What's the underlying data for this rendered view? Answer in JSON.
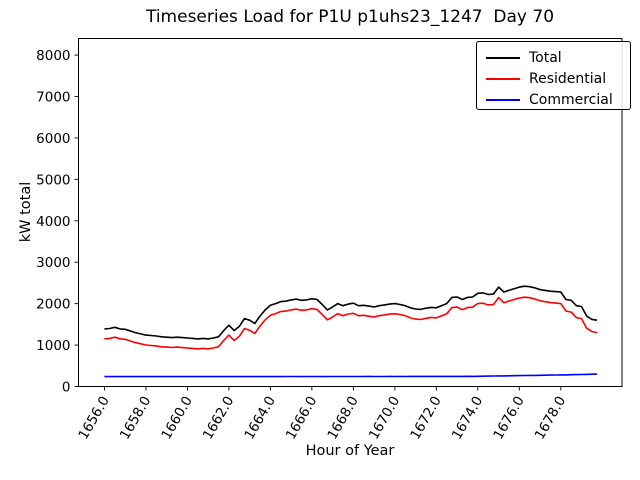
{
  "chart_data": {
    "type": "line",
    "title": "Timeseries Load for P1U p1uhs23_1247  Day 70",
    "xlabel": "Hour of Year",
    "ylabel": "kW total",
    "xlim": [
      1654.75,
      1680.95
    ],
    "ylim": [
      0,
      8400
    ],
    "grid": false,
    "legend_position": "upper right",
    "xtick_values": [
      1656,
      1658,
      1660,
      1662,
      1664,
      1666,
      1668,
      1670,
      1672,
      1674,
      1676,
      1678
    ],
    "xtick_labels": [
      "1656.0",
      "1658.0",
      "1660.0",
      "1662.0",
      "1664.0",
      "1666.0",
      "1668.0",
      "1670.0",
      "1672.0",
      "1674.0",
      "1676.0",
      "1678.0"
    ],
    "ytick_values": [
      0,
      1000,
      2000,
      3000,
      4000,
      5000,
      6000,
      7000,
      8000
    ],
    "ytick_labels": [
      "0",
      "1000",
      "2000",
      "3000",
      "4000",
      "5000",
      "6000",
      "7000",
      "8000"
    ],
    "x": [
      1656.0,
      1656.25,
      1656.5,
      1656.75,
      1657.0,
      1657.25,
      1657.5,
      1657.75,
      1658.0,
      1658.25,
      1658.5,
      1658.75,
      1659.0,
      1659.25,
      1659.5,
      1659.75,
      1660.0,
      1660.25,
      1660.5,
      1660.75,
      1661.0,
      1661.25,
      1661.5,
      1661.75,
      1662.0,
      1662.25,
      1662.5,
      1662.75,
      1663.0,
      1663.25,
      1663.5,
      1663.75,
      1664.0,
      1664.25,
      1664.5,
      1664.75,
      1665.0,
      1665.25,
      1665.5,
      1665.75,
      1666.0,
      1666.25,
      1666.5,
      1666.75,
      1667.0,
      1667.25,
      1667.5,
      1667.75,
      1668.0,
      1668.25,
      1668.5,
      1668.75,
      1669.0,
      1669.25,
      1669.5,
      1669.75,
      1670.0,
      1670.25,
      1670.5,
      1670.75,
      1671.0,
      1671.25,
      1671.5,
      1671.75,
      1672.0,
      1672.25,
      1672.5,
      1672.75,
      1673.0,
      1673.25,
      1673.5,
      1673.75,
      1674.0,
      1674.25,
      1674.5,
      1674.75,
      1675.0,
      1675.25,
      1675.5,
      1675.75,
      1676.0,
      1676.25,
      1676.5,
      1676.75,
      1677.0,
      1677.25,
      1677.5,
      1677.75,
      1678.0,
      1678.25,
      1678.5,
      1678.75,
      1679.0,
      1679.25,
      1679.5,
      1679.75
    ],
    "series": [
      {
        "name": "Total",
        "color": "#000000",
        "values": [
          1390,
          1400,
          1430,
          1390,
          1380,
          1340,
          1300,
          1270,
          1240,
          1230,
          1220,
          1200,
          1190,
          1180,
          1190,
          1180,
          1170,
          1160,
          1150,
          1160,
          1150,
          1170,
          1200,
          1350,
          1480,
          1350,
          1450,
          1640,
          1600,
          1520,
          1700,
          1850,
          1960,
          2000,
          2050,
          2060,
          2090,
          2110,
          2080,
          2090,
          2120,
          2100,
          1980,
          1850,
          1920,
          2000,
          1950,
          1990,
          2010,
          1950,
          1960,
          1940,
          1920,
          1950,
          1970,
          1990,
          2000,
          1980,
          1950,
          1900,
          1870,
          1860,
          1890,
          1910,
          1900,
          1950,
          2000,
          2150,
          2160,
          2100,
          2150,
          2160,
          2250,
          2260,
          2220,
          2230,
          2400,
          2280,
          2320,
          2360,
          2400,
          2420,
          2410,
          2380,
          2340,
          2320,
          2300,
          2290,
          2280,
          2100,
          2080,
          1950,
          1930,
          1700,
          1620,
          1600
        ]
      },
      {
        "name": "Residential",
        "color": "#ff0000",
        "values": [
          1150,
          1160,
          1191,
          1151,
          1140,
          1099,
          1060,
          1030,
          1001,
          990,
          980,
          959,
          950,
          941,
          950,
          940,
          929,
          920,
          911,
          920,
          910,
          929,
          960,
          1110,
          1241,
          1110,
          1209,
          1400,
          1360,
          1279,
          1460,
          1610,
          1719,
          1760,
          1810,
          1819,
          1848,
          1869,
          1840,
          1849,
          1878,
          1859,
          1740,
          1609,
          1678,
          1759,
          1708,
          1749,
          1768,
          1709,
          1718,
          1697,
          1678,
          1709,
          1728,
          1747,
          1758,
          1737,
          1708,
          1657,
          1626,
          1617,
          1646,
          1667,
          1656,
          1705,
          1756,
          1905,
          1916,
          1855,
          1904,
          1915,
          2003,
          2011,
          1969,
          1977,
          2145,
          2023,
          2061,
          2099,
          2137,
          2155,
          2143,
          2111,
          2069,
          2047,
          2025,
          2013,
          2001,
          1819,
          1796,
          1663,
          1640,
          1407,
          1324,
          1300
        ]
      },
      {
        "name": "Commercial",
        "color": "#0000ff",
        "values": [
          240,
          240,
          239,
          239,
          240,
          241,
          240,
          240,
          239,
          240,
          240,
          241,
          240,
          239,
          240,
          240,
          241,
          240,
          239,
          240,
          240,
          241,
          240,
          240,
          239,
          240,
          241,
          240,
          240,
          241,
          240,
          240,
          241,
          240,
          240,
          241,
          242,
          241,
          240,
          241,
          242,
          241,
          240,
          241,
          242,
          241,
          242,
          241,
          242,
          241,
          242,
          243,
          242,
          241,
          242,
          243,
          242,
          243,
          242,
          243,
          244,
          243,
          244,
          243,
          244,
          245,
          244,
          245,
          244,
          245,
          246,
          245,
          247,
          249,
          251,
          253,
          255,
          257,
          259,
          261,
          263,
          265,
          267,
          269,
          271,
          273,
          275,
          277,
          279,
          281,
          284,
          287,
          290,
          293,
          296,
          300
        ]
      }
    ]
  }
}
